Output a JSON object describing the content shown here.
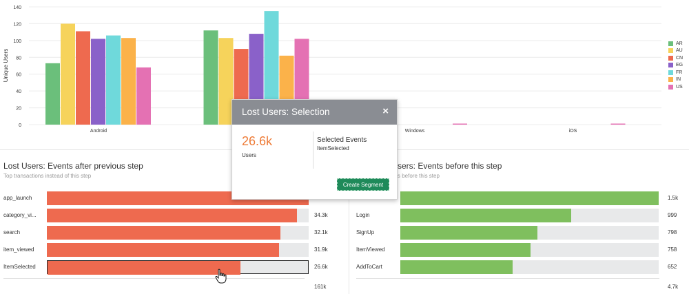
{
  "chart_data": {
    "type": "bar",
    "ylabel": "Unique Users",
    "xlabel": "",
    "ylim": [
      0,
      140
    ],
    "yticks": [
      0,
      20,
      40,
      60,
      80,
      100,
      120,
      140
    ],
    "categories": [
      "Android",
      "",
      "Windows",
      "iOS"
    ],
    "series": [
      {
        "name": "AR",
        "color": "#6bbf7b",
        "values": [
          73,
          112,
          0,
          0
        ]
      },
      {
        "name": "AU",
        "color": "#f6d35b",
        "values": [
          120,
          103,
          0,
          0
        ]
      },
      {
        "name": "CN",
        "color": "#ee6a4f",
        "values": [
          111,
          90,
          0,
          0
        ]
      },
      {
        "name": "EG",
        "color": "#8a61c9",
        "values": [
          102,
          108,
          0,
          0
        ]
      },
      {
        "name": "FR",
        "color": "#6fd9db",
        "values": [
          106,
          135,
          0,
          0
        ]
      },
      {
        "name": "IN",
        "color": "#fbb24a",
        "values": [
          103,
          82,
          0,
          0
        ]
      },
      {
        "name": "US",
        "color": "#e471b3",
        "values": [
          68,
          102,
          1,
          1
        ]
      }
    ],
    "grid": true,
    "legend_position": "right"
  },
  "left_panel": {
    "title": "Lost Users: Events after previous step",
    "subtitle": "Top transactions instead of this step",
    "color": "#ee6a4f",
    "rows": [
      {
        "label": "app_launch",
        "value": "",
        "fraction": 1.0,
        "selected": false
      },
      {
        "label": "category_vi...",
        "value": "34.3k",
        "fraction": 0.954,
        "selected": false
      },
      {
        "label": "search",
        "value": "32.1k",
        "fraction": 0.893,
        "selected": false
      },
      {
        "label": "item_viewed",
        "value": "31.9k",
        "fraction": 0.887,
        "selected": false
      },
      {
        "label": "ItemSelected",
        "value": "26.6k",
        "fraction": 0.74,
        "selected": true
      }
    ],
    "total": "161k"
  },
  "right_panel": {
    "title_visible": "sers: Events before this step",
    "subtitle_visible": "s before this step",
    "color": "#7fbf5e",
    "rows": [
      {
        "label": "",
        "value": "1.5k",
        "fraction": 1.0
      },
      {
        "label": "Login",
        "value": "999",
        "fraction": 0.66
      },
      {
        "label": "SignUp",
        "value": "798",
        "fraction": 0.53
      },
      {
        "label": "ItemViewed",
        "value": "758",
        "fraction": 0.505
      },
      {
        "label": "AddToCart",
        "value": "652",
        "fraction": 0.435
      }
    ],
    "total": "4.7k"
  },
  "popup": {
    "title": "Lost Users: Selection",
    "close_glyph": "×",
    "count": "26.6k",
    "count_label": "Users",
    "selected_events_title": "Selected Events",
    "selected_event": "ItemSelected",
    "button_label": "Create Segment"
  }
}
